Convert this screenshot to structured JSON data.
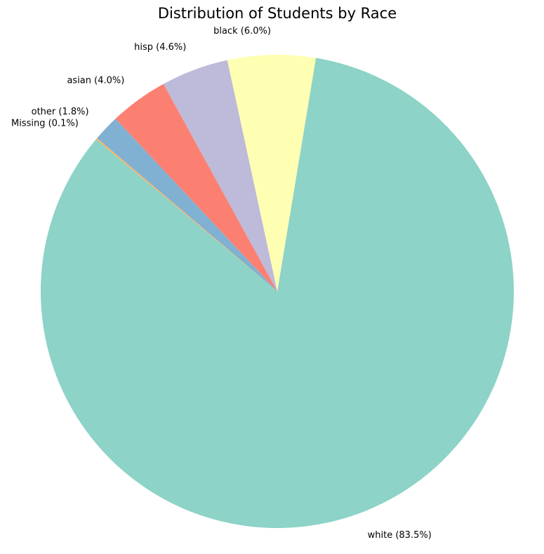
{
  "chart_data": {
    "type": "pie",
    "title": "Distribution of Students by Race",
    "start_angle_deg": 140,
    "counterclockwise": true,
    "slices": [
      {
        "label": "white",
        "value": 83.5,
        "display": "white (83.5%)",
        "color": "#8dd3c7"
      },
      {
        "label": "black",
        "value": 6.0,
        "display": "black (6.0%)",
        "color": "#ffffb3"
      },
      {
        "label": "hisp",
        "value": 4.6,
        "display": "hisp (4.6%)",
        "color": "#bebada"
      },
      {
        "label": "asian",
        "value": 4.0,
        "display": "asian (4.0%)",
        "color": "#fb8072"
      },
      {
        "label": "other",
        "value": 1.8,
        "display": "other (1.8%)",
        "color": "#80b1d3"
      },
      {
        "label": "Missing",
        "value": 0.1,
        "display": "Missing (0.1%)",
        "color": "#fdb462"
      }
    ]
  }
}
